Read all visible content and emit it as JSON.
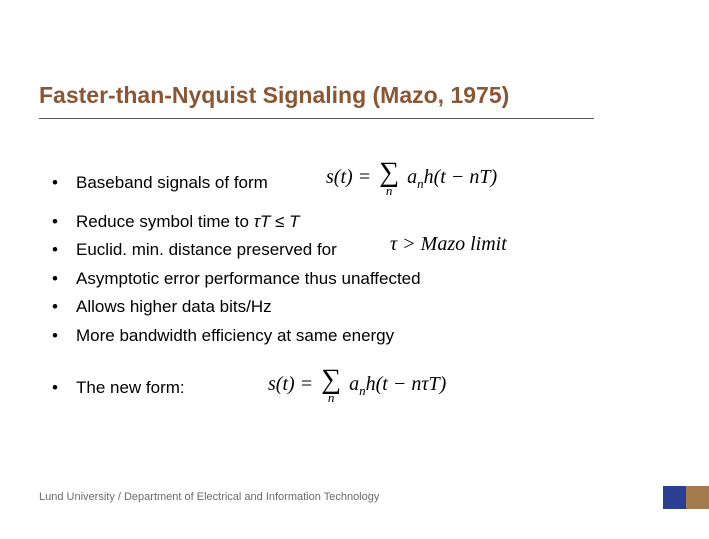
{
  "title": "Faster-than-Nyquist Signaling (Mazo, 1975)",
  "bullets": {
    "b1": "Baseband signals of form",
    "b2_pre": "Reduce symbol time to  ",
    "b2_ineq": "τT ≤ T",
    "b3": "Euclid. min. distance preserved for",
    "b4": "Asymptotic error performance thus unaffected",
    "b5": "Allows higher data bits/Hz",
    "b6": "More bandwidth efficiency at same energy",
    "b7": "The new form:"
  },
  "formulas": {
    "eq1_lhs": "s(t) = ",
    "eq1_sum_sub": "n",
    "eq1_rhs_a": "a",
    "eq1_rhs_a_sub": "n",
    "eq1_rhs_h": "h(t − nT)",
    "mazo": "τ > Mazo limit",
    "eq3_lhs": "s(t) = ",
    "eq3_sum_sub": "n",
    "eq3_rhs_a": "a",
    "eq3_rhs_a_sub": "n",
    "eq3_rhs_h": "h(t − nτT)"
  },
  "footer": "Lund University / Department of Electrical and Information Technology",
  "colors": {
    "title": "#8a5634",
    "underline": "#555555",
    "text": "#000000",
    "footer": "#6a6a6a",
    "brand1": "#2a3f91",
    "brand2": "#a37b4d",
    "bg": "#ffffff"
  },
  "fonts": {
    "title_size": 23,
    "body_size": 17,
    "footer_size": 11,
    "formula_family": "Times New Roman"
  }
}
